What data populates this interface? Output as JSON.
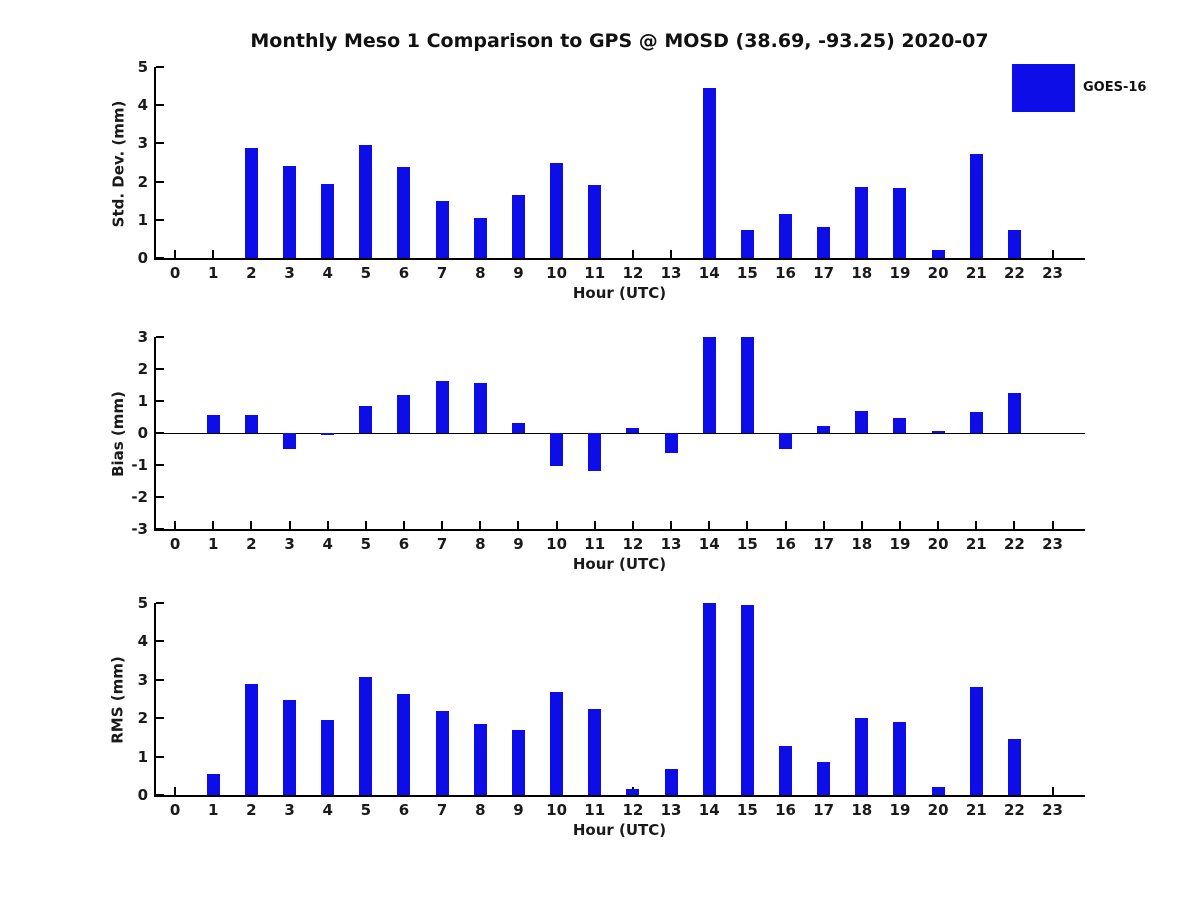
{
  "title": "Monthly Meso 1 Comparison to GPS @ MOSD (38.69, -93.25) 2020-07",
  "legend": {
    "label": "GOES-16",
    "position": "top-right"
  },
  "colors": {
    "bar": "#0d0de8",
    "axis": "#000000",
    "text": "#1a1a1a"
  },
  "chart_data": [
    {
      "type": "bar",
      "title": "",
      "ylabel": "Std. Dev. (mm)",
      "xlabel": "Hour (UTC)",
      "categories": [
        0,
        1,
        2,
        3,
        4,
        5,
        6,
        7,
        8,
        9,
        10,
        11,
        12,
        13,
        14,
        15,
        16,
        17,
        18,
        19,
        20,
        21,
        22,
        23
      ],
      "series": [
        {
          "name": "GOES-16",
          "values": [
            0,
            0,
            2.87,
            2.4,
            1.95,
            2.97,
            2.37,
            1.48,
            1.05,
            1.65,
            2.48,
            1.9,
            0,
            0,
            4.45,
            0.72,
            1.15,
            0.82,
            1.87,
            1.82,
            0.2,
            2.73,
            0.72,
            0
          ]
        }
      ],
      "ylim": [
        0,
        5
      ],
      "yticks": [
        0,
        1,
        2,
        3,
        4,
        5
      ],
      "xlim": [
        -0.5,
        23.85
      ],
      "grid": false,
      "zero_line": false,
      "legend_position": "figure-top-right"
    },
    {
      "type": "bar",
      "title": "",
      "ylabel": "Bias (mm)",
      "xlabel": "Hour (UTC)",
      "categories": [
        0,
        1,
        2,
        3,
        4,
        5,
        6,
        7,
        8,
        9,
        10,
        11,
        12,
        13,
        14,
        15,
        16,
        17,
        18,
        19,
        20,
        21,
        22,
        23
      ],
      "series": [
        {
          "name": "GOES-16",
          "values": [
            0,
            0.55,
            0.55,
            -0.5,
            -0.07,
            0.85,
            1.2,
            1.63,
            1.55,
            0.3,
            -1.03,
            -1.18,
            0.17,
            -0.63,
            3.0,
            3.0,
            -0.5,
            0.22,
            0.68,
            0.47,
            0.07,
            0.65,
            1.25,
            0
          ]
        }
      ],
      "ylim": [
        -3,
        3
      ],
      "yticks": [
        -3,
        -2,
        -1,
        0,
        1,
        2,
        3
      ],
      "xlim": [
        -0.5,
        23.85
      ],
      "grid": false,
      "zero_line": true,
      "legend_position": "none"
    },
    {
      "type": "bar",
      "title": "",
      "ylabel": "RMS (mm)",
      "xlabel": "Hour (UTC)",
      "categories": [
        0,
        1,
        2,
        3,
        4,
        5,
        6,
        7,
        8,
        9,
        10,
        11,
        12,
        13,
        14,
        15,
        16,
        17,
        18,
        19,
        20,
        21,
        22,
        23
      ],
      "series": [
        {
          "name": "GOES-16",
          "values": [
            0,
            0.55,
            2.9,
            2.47,
            1.95,
            3.08,
            2.63,
            2.2,
            1.85,
            1.7,
            2.67,
            2.23,
            0.15,
            0.68,
            5.0,
            4.95,
            1.27,
            0.85,
            2.0,
            1.9,
            0.2,
            2.8,
            1.45,
            0
          ]
        }
      ],
      "ylim": [
        0,
        5
      ],
      "yticks": [
        0,
        1,
        2,
        3,
        4,
        5
      ],
      "xlim": [
        -0.5,
        23.85
      ],
      "grid": false,
      "zero_line": false,
      "legend_position": "none"
    }
  ]
}
